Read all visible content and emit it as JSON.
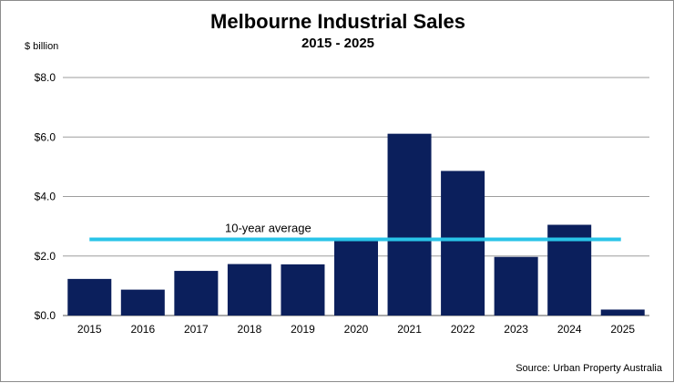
{
  "header": {
    "title": "Melbourne Industrial Sales",
    "subtitle": "2015 - 2025",
    "unit_label": "$ billion"
  },
  "footer": {
    "source": "Source: Urban Property Australia"
  },
  "colors": {
    "bar": "#0b1f5c",
    "average_line": "#29c4e8",
    "grid": "#9e9e9e"
  },
  "chart_data": {
    "type": "bar",
    "title": "Melbourne Industrial Sales",
    "subtitle": "2015 - 2025",
    "ylabel": "$ billion",
    "categories": [
      "2015",
      "2016",
      "2017",
      "2018",
      "2019",
      "2020",
      "2021",
      "2022",
      "2023",
      "2024",
      "2025"
    ],
    "values": [
      1.23,
      0.87,
      1.5,
      1.73,
      1.72,
      2.52,
      6.11,
      4.86,
      1.97,
      3.05,
      0.2
    ],
    "ylim": [
      0,
      8
    ],
    "yticks": [
      0,
      2,
      4,
      6,
      8
    ],
    "ytick_labels": [
      "$0.0",
      "$2.0",
      "$4.0",
      "$6.0",
      "$8.0"
    ],
    "grid": true,
    "legend": "none",
    "average": {
      "label": "10-year average",
      "value": 2.56
    }
  }
}
